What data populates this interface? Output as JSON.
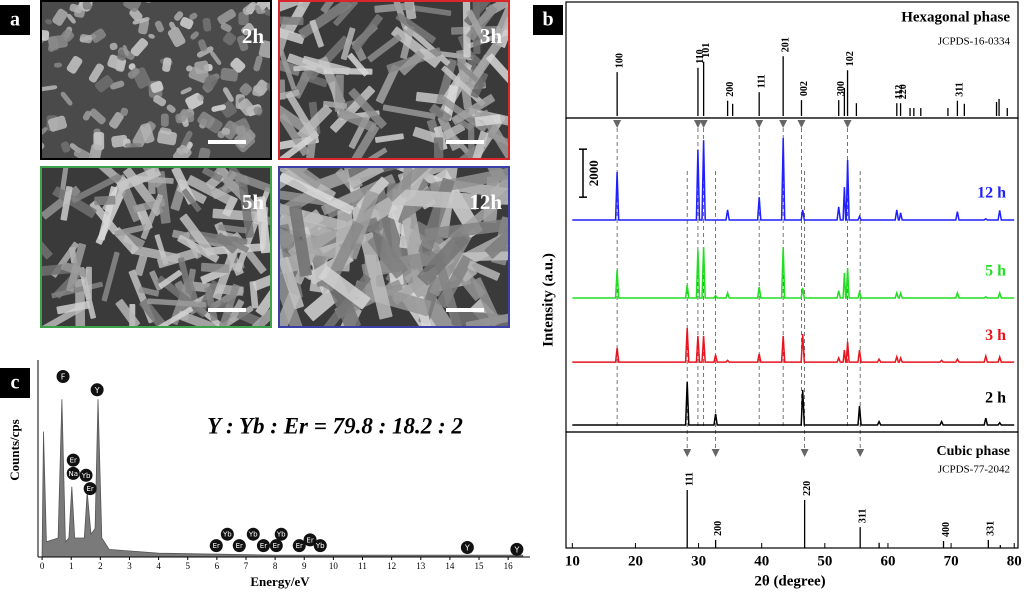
{
  "panel_labels": [
    "a",
    "b",
    "c"
  ],
  "sem_images": [
    {
      "label": "2h",
      "border": "#000000"
    },
    {
      "label": "3h",
      "border": "#d9262b"
    },
    {
      "label": "5h",
      "border": "#3da24a"
    },
    {
      "label": "12h",
      "border": "#3b3fa8"
    }
  ],
  "chart_data": [
    {
      "type": "xrd",
      "x_label": "2θ (degree)",
      "y_label": "Intensity (a.u.)",
      "xlim": [
        9,
        80.6
      ],
      "xticks": [
        10,
        20,
        30,
        40,
        50,
        60,
        70,
        80
      ],
      "ylim": [
        0,
        13000
      ],
      "scale_bar": 2000,
      "reference_top": {
        "title": "Hexagonal phase",
        "card": "JCPDS-16-0334",
        "ylim": [
          0,
          100
        ],
        "x": [
          17.1,
          29.9,
          30.8,
          34.6,
          35.4,
          39.6,
          43.4,
          46.3,
          52.2,
          53.1,
          53.6,
          55.0,
          61.4,
          62.0,
          63.5,
          64.1,
          65.2,
          69.5,
          71.0,
          72.1,
          77.2,
          77.6,
          78.9
        ],
        "values": [
          72,
          79,
          89,
          25,
          20,
          39,
          98,
          26,
          26,
          46,
          75,
          21,
          21,
          21,
          13,
          13,
          13,
          13,
          25,
          20,
          23,
          28,
          13
        ],
        "labels": [
          "100",
          "110",
          "101",
          "200",
          null,
          "111",
          "201",
          "002",
          "300",
          null,
          "102",
          null,
          "112",
          "220",
          null,
          null,
          null,
          null,
          "311",
          null,
          null,
          null,
          null
        ]
      },
      "reference_bottom": {
        "title": "Cubic phase",
        "card": "JCPDS-77-2042",
        "ylim": [
          0,
          100
        ],
        "x": [
          28.2,
          32.7,
          46.8,
          55.6,
          58.6,
          68.8,
          75.9,
          77.8
        ],
        "values": [
          100,
          14,
          83,
          36,
          9,
          12,
          14,
          5
        ],
        "labels": [
          "111",
          "200",
          "220",
          "311",
          null,
          "400",
          "331",
          null
        ]
      },
      "x": [
        10,
        16.85,
        17.1,
        17.35,
        27.95,
        28.2,
        28.45,
        29.65,
        29.9,
        30.15,
        30.55,
        30.8,
        31.05,
        32.45,
        32.7,
        32.95,
        34.35,
        34.6,
        34.85,
        39.35,
        39.6,
        39.85,
        43.15,
        43.4,
        43.65,
        46.25,
        46.5,
        46.75,
        51.95,
        52.2,
        52.45,
        52.9,
        53.1,
        53.3,
        53.4,
        53.6,
        53.85,
        55.25,
        55.5,
        55.75,
        58.35,
        58.6,
        58.85,
        61.15,
        61.4,
        61.65,
        61.8,
        62.0,
        62.25,
        68.25,
        68.5,
        68.75,
        70.75,
        71.0,
        71.25,
        75.25,
        75.5,
        75.75,
        77.45,
        77.7,
        77.95,
        80
      ],
      "series": [
        {
          "name": "12 h",
          "color": "#1f1fff",
          "values": [
            8750,
            8750,
            10750,
            8750,
            8750,
            8750,
            8750,
            8750,
            11670,
            8750,
            8750,
            12080,
            8750,
            8750,
            8750,
            8750,
            8750,
            9170,
            8750,
            8750,
            9700,
            8750,
            8750,
            12170,
            8750,
            8750,
            9170,
            8750,
            8750,
            9300,
            8750,
            8750,
            10120,
            8750,
            8750,
            11250,
            8750,
            8750,
            8900,
            8750,
            8750,
            8750,
            8750,
            8750,
            9170,
            8750,
            8750,
            9050,
            8750,
            8750,
            8750,
            8750,
            8750,
            9100,
            8750,
            8750,
            8800,
            8750,
            8750,
            9150,
            8750,
            8750
          ]
        },
        {
          "name": "5 h",
          "color": "#22dd22",
          "values": [
            5500,
            5500,
            6670,
            5500,
            5500,
            6040,
            5500,
            5500,
            7500,
            5500,
            5500,
            7625,
            5500,
            5500,
            5600,
            5500,
            5500,
            5710,
            5500,
            5500,
            5960,
            5500,
            5500,
            7625,
            5500,
            5500,
            5920,
            5500,
            5500,
            5800,
            5500,
            5500,
            6540,
            5500,
            5500,
            6750,
            5500,
            5500,
            5750,
            5500,
            5500,
            5500,
            5500,
            5500,
            5710,
            5500,
            5500,
            5700,
            5500,
            5500,
            5500,
            5500,
            5500,
            5710,
            5500,
            5500,
            5550,
            5500,
            5500,
            5710,
            5500,
            5500
          ]
        },
        {
          "name": "3 h",
          "color": "#e8141e",
          "values": [
            2830,
            2830,
            3420,
            2830,
            2830,
            4250,
            2830,
            2830,
            3920,
            2830,
            2830,
            3920,
            2830,
            2830,
            3130,
            2830,
            2830,
            2900,
            2830,
            2830,
            3170,
            2830,
            2830,
            3920,
            2830,
            2830,
            4000,
            2830,
            2830,
            3000,
            2830,
            2830,
            3330,
            2830,
            2830,
            3670,
            2830,
            2830,
            3330,
            2830,
            2830,
            2950,
            2830,
            2830,
            3050,
            2830,
            2830,
            3000,
            2830,
            2830,
            2900,
            2830,
            2830,
            2950,
            2830,
            2830,
            3080,
            2830,
            2830,
            3040,
            2830,
            2830
          ]
        },
        {
          "name": "2 h",
          "color": "#000000",
          "values": [
            210,
            210,
            210,
            210,
            210,
            2000,
            210,
            210,
            210,
            210,
            210,
            210,
            210,
            210,
            670,
            210,
            210,
            210,
            210,
            210,
            210,
            210,
            210,
            210,
            210,
            210,
            1670,
            210,
            210,
            210,
            210,
            210,
            210,
            210,
            210,
            210,
            210,
            210,
            1000,
            210,
            210,
            350,
            210,
            210,
            210,
            210,
            210,
            210,
            210,
            210,
            350,
            210,
            210,
            210,
            210,
            210,
            500,
            210,
            210,
            300,
            210,
            210
          ]
        }
      ]
    },
    {
      "type": "area",
      "x_label": "Energy/eV",
      "y_label": "Counts/cps",
      "annotation": "Y : Yb : Er = 79.8 : 18.2 : 2",
      "xlim": [
        -0.14,
        16.75
      ],
      "xticks": [
        0,
        1,
        2,
        3,
        4,
        5,
        6,
        7,
        8,
        9,
        10,
        11,
        12,
        13,
        14,
        15,
        16
      ],
      "ylim": [
        0,
        100
      ],
      "color": "#7a7a7a",
      "x": [
        0,
        0.05,
        0.15,
        0.55,
        0.68,
        0.8,
        0.92,
        1.02,
        1.12,
        1.45,
        1.55,
        1.68,
        1.82,
        1.92,
        2.05,
        2.3,
        4,
        8,
        16.5
      ],
      "values": [
        2,
        66,
        8,
        10,
        83,
        8,
        10,
        37,
        10,
        10,
        34,
        12,
        15,
        83,
        10,
        4,
        2,
        1,
        1
      ],
      "element_labels": [
        {
          "text": "F",
          "x": 0.72,
          "y": 95
        },
        {
          "text": "Y",
          "x": 1.89,
          "y": 88
        },
        {
          "text": "Er",
          "x": 1.07,
          "y": 51
        },
        {
          "text": "Na",
          "x": 1.07,
          "y": 44
        },
        {
          "text": "Yb",
          "x": 1.51,
          "y": 43
        },
        {
          "text": "Er",
          "x": 1.65,
          "y": 36
        },
        {
          "text": "Er",
          "x": 5.98,
          "y": 6
        },
        {
          "text": "Yb",
          "x": 6.36,
          "y": 12
        },
        {
          "text": "Er",
          "x": 6.77,
          "y": 6
        },
        {
          "text": "Yb",
          "x": 7.25,
          "y": 12
        },
        {
          "text": "Er",
          "x": 7.6,
          "y": 6
        },
        {
          "text": "Er",
          "x": 8.04,
          "y": 6
        },
        {
          "text": "Yb",
          "x": 8.21,
          "y": 12
        },
        {
          "text": "Er",
          "x": 8.83,
          "y": 6
        },
        {
          "text": "Er",
          "x": 9.2,
          "y": 9
        },
        {
          "text": "Yb",
          "x": 9.55,
          "y": 6
        },
        {
          "text": "Y",
          "x": 14.6,
          "y": 5
        },
        {
          "text": "Y",
          "x": 16.3,
          "y": 4
        }
      ]
    }
  ]
}
